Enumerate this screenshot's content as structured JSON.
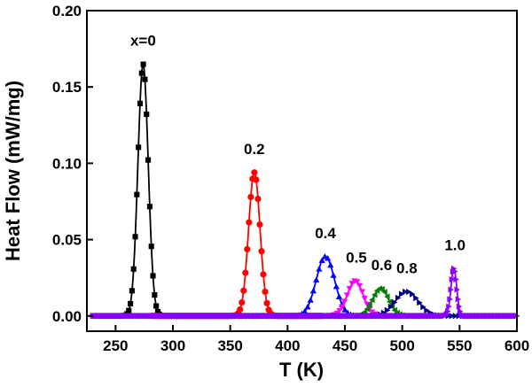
{
  "chart_data": {
    "type": "line",
    "title": "",
    "xlabel": "T (K)",
    "ylabel": "Heat Flow (mW/mg)",
    "xlim": [
      225,
      600
    ],
    "ylim": [
      -0.01,
      0.2
    ],
    "xticks": [
      250,
      300,
      350,
      400,
      450,
      500,
      550,
      600
    ],
    "yticks": [
      0.0,
      0.05,
      0.1,
      0.15,
      0.2
    ],
    "xtick_labels": [
      "250",
      "300",
      "350",
      "400",
      "450",
      "500",
      "550",
      "600"
    ],
    "ytick_labels": [
      "0.00",
      "0.05",
      "0.10",
      "0.15",
      "0.20"
    ],
    "grid": false,
    "series": [
      {
        "name": "x=0",
        "color": "#000000",
        "marker": "square",
        "peak_T": 274,
        "peak_value": 0.165,
        "width": 4.5,
        "start_T": 232,
        "end_T": 290
      },
      {
        "name": "0.2",
        "color": "#ff0000",
        "marker": "circle",
        "peak_T": 371,
        "peak_value": 0.094,
        "width": 5,
        "start_T": 282,
        "end_T": 430
      },
      {
        "name": "0.4",
        "color": "#0000ff",
        "marker": "triangle-up",
        "peak_T": 433,
        "peak_value": 0.039,
        "width": 8,
        "start_T": 290,
        "end_T": 475
      },
      {
        "name": "0.5",
        "color": "#ff00ff",
        "marker": "triangle-down",
        "peak_T": 459,
        "peak_value": 0.023,
        "width": 7,
        "start_T": 290,
        "end_T": 500
      },
      {
        "name": "0.6",
        "color": "#008000",
        "marker": "triangle-left",
        "peak_T": 481,
        "peak_value": 0.018,
        "width": 7,
        "start_T": 290,
        "end_T": 520
      },
      {
        "name": "0.8",
        "color": "#000080",
        "marker": "triangle-right",
        "peak_T": 504,
        "peak_value": 0.016,
        "width": 10,
        "start_T": 290,
        "end_T": 600
      },
      {
        "name": "1.0",
        "color": "#8b00ff",
        "marker": "triangle-right",
        "peak_T": 545,
        "peak_value": 0.031,
        "width": 2.5,
        "start_T": 230,
        "end_T": 600
      }
    ],
    "annotations": [
      {
        "text": "x=0",
        "x": 274,
        "y": 0.177
      },
      {
        "text": "0.2",
        "x": 371,
        "y": 0.106
      },
      {
        "text": "0.4",
        "x": 433,
        "y": 0.051
      },
      {
        "text": "0.5",
        "x": 460,
        "y": 0.035
      },
      {
        "text": "0.6",
        "x": 482,
        "y": 0.03
      },
      {
        "text": "0.8",
        "x": 504,
        "y": 0.028
      },
      {
        "text": "1.0",
        "x": 546,
        "y": 0.043
      }
    ]
  }
}
